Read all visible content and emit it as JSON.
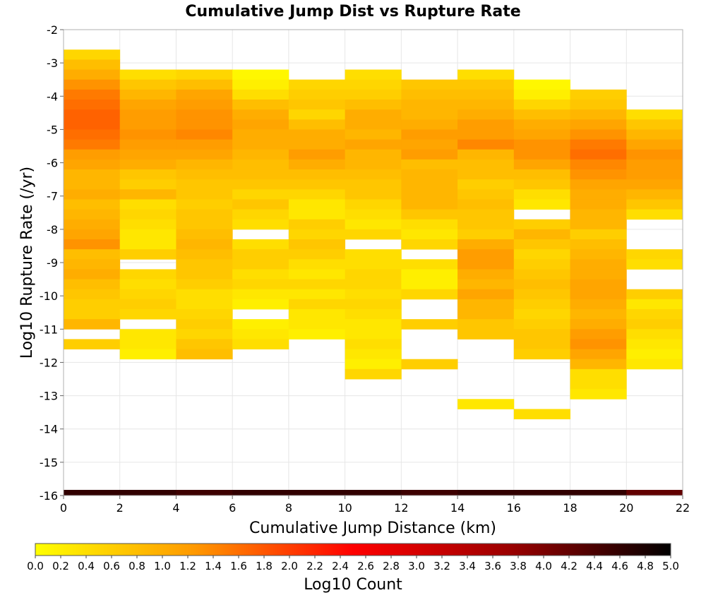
{
  "chart_data": {
    "type": "heatmap",
    "title": "Cumulative Jump Dist vs Rupture Rate",
    "xlabel": "Cumulative Jump Distance (km)",
    "ylabel": "Log10 Rupture Rate (/yr)",
    "xlim": [
      0,
      22
    ],
    "ylim": [
      -16,
      -2
    ],
    "x_ticks": [
      "0",
      "2",
      "4",
      "6",
      "8",
      "10",
      "12",
      "14",
      "16",
      "18",
      "20",
      "22"
    ],
    "y_ticks": [
      "-2",
      "-3",
      "-4",
      "-5",
      "-6",
      "-7",
      "-8",
      "-9",
      "-10",
      "-11",
      "-12",
      "-13",
      "-14",
      "-15",
      "-16"
    ],
    "x_bin_width": 2,
    "y_bin_height": 0.3,
    "grid": true,
    "colorbar": {
      "label": "Log10 Count",
      "min": 0.0,
      "max": 5.0,
      "ticks": [
        "0.0",
        "0.2",
        "0.4",
        "0.6",
        "0.8",
        "1.0",
        "1.2",
        "1.4",
        "1.6",
        "1.8",
        "2.0",
        "2.2",
        "2.4",
        "2.6",
        "2.8",
        "3.0",
        "3.2",
        "3.4",
        "3.6",
        "3.8",
        "4.0",
        "4.2",
        "4.4",
        "4.6",
        "4.8",
        "5.0"
      ],
      "stops": [
        "#ffff00",
        "#ff9900",
        "#ff0000",
        "#990000",
        "#000000"
      ]
    },
    "columns": [
      {
        "x_start": 0,
        "y_top": -2.6,
        "values": [
          0.5,
          0.8,
          1.0,
          1.3,
          1.5,
          1.6,
          1.7,
          1.7,
          1.6,
          1.5,
          1.2,
          1.1,
          0.9,
          0.9,
          1.0,
          0.8,
          0.9,
          1.0,
          1.1,
          1.3,
          0.8,
          0.9,
          1.0,
          0.8,
          0.7,
          0.6,
          0.6,
          0.9,
          null,
          0.6
        ]
      },
      {
        "x_start": 2,
        "y_top": -3.2,
        "values": [
          0.4,
          0.7,
          0.9,
          1.1,
          1.2,
          1.2,
          1.3,
          1.2,
          1.1,
          1.0,
          0.7,
          0.6,
          0.9,
          0.4,
          0.5,
          0.4,
          0.3,
          0.3,
          0.6,
          null,
          0.5,
          0.4,
          0.5,
          0.6,
          0.5,
          null,
          0.3,
          0.3,
          0.2
        ]
      },
      {
        "x_start": 4,
        "y_top": -3.2,
        "values": [
          0.5,
          0.8,
          1.1,
          1.2,
          1.3,
          1.3,
          1.4,
          1.2,
          1.1,
          0.9,
          0.8,
          0.7,
          0.7,
          0.6,
          0.7,
          0.7,
          0.8,
          0.9,
          0.8,
          0.7,
          0.7,
          0.6,
          0.4,
          0.4,
          0.5,
          0.6,
          0.5,
          0.7,
          0.8
        ]
      },
      {
        "x_start": 6,
        "y_top": -3.2,
        "values": [
          0.1,
          0.2,
          0.4,
          0.8,
          1.0,
          1.1,
          1.0,
          1.0,
          0.9,
          0.8,
          0.8,
          0.7,
          0.5,
          0.7,
          0.5,
          0.4,
          null,
          0.4,
          0.6,
          0.6,
          0.4,
          0.5,
          0.3,
          0.2,
          null,
          0.2,
          0.3,
          0.4
        ]
      },
      {
        "x_start": 8,
        "y_top": -3.5,
        "values": [
          0.5,
          0.6,
          0.7,
          0.5,
          0.8,
          1.0,
          1.0,
          1.2,
          1.0,
          0.8,
          0.7,
          0.5,
          0.3,
          0.3,
          0.6,
          0.5,
          0.7,
          0.6,
          0.4,
          0.3,
          0.5,
          0.3,
          0.5,
          0.3,
          0.3,
          0.2
        ]
      },
      {
        "x_start": 10,
        "y_top": -3.2,
        "values": [
          0.4,
          0.5,
          0.6,
          0.8,
          1.0,
          1.0,
          0.9,
          1.1,
          0.9,
          0.9,
          0.8,
          0.7,
          0.7,
          0.5,
          0.4,
          0.3,
          0.5,
          null,
          0.4,
          0.4,
          0.5,
          0.5,
          0.4,
          0.5,
          0.4,
          0.3,
          0.3,
          0.4,
          0.3,
          0.2,
          0.5
        ]
      },
      {
        "x_start": 12,
        "y_top": -3.5,
        "values": [
          0.7,
          0.8,
          0.9,
          0.9,
          1.0,
          1.2,
          1.1,
          1.2,
          0.8,
          0.9,
          0.9,
          0.9,
          0.9,
          0.7,
          0.4,
          0.3,
          0.5,
          null,
          0.4,
          0.2,
          0.2,
          0.5,
          null,
          null,
          0.6,
          null,
          null,
          null,
          0.6
        ]
      },
      {
        "x_start": 14,
        "y_top": -3.2,
        "values": [
          0.4,
          0.7,
          0.8,
          0.9,
          1.0,
          1.2,
          1.2,
          1.4,
          0.9,
          0.8,
          0.8,
          0.6,
          0.7,
          0.8,
          0.7,
          0.7,
          0.6,
          1.0,
          1.2,
          1.2,
          1.0,
          0.9,
          1.1,
          0.9,
          0.9,
          0.7,
          0.7,
          null,
          null,
          null,
          null,
          null,
          null,
          0.3
        ]
      },
      {
        "x_start": 16,
        "y_top": -3.5,
        "values": [
          0.1,
          0.2,
          0.5,
          0.8,
          1.0,
          1.1,
          1.3,
          1.3,
          1.1,
          0.8,
          0.7,
          0.4,
          0.3,
          null,
          0.6,
          0.9,
          0.7,
          0.5,
          0.6,
          0.7,
          0.8,
          0.7,
          0.6,
          0.5,
          0.6,
          0.7,
          0.7,
          0.6,
          null,
          null,
          null,
          null,
          null,
          0.4
        ]
      },
      {
        "x_start": 18,
        "y_top": -3.8,
        "values": [
          0.6,
          0.7,
          0.9,
          1.1,
          1.3,
          1.5,
          1.6,
          1.4,
          1.3,
          1.1,
          1.0,
          1.0,
          0.9,
          0.9,
          0.6,
          0.8,
          0.9,
          1.0,
          1.0,
          1.1,
          1.1,
          1.0,
          0.9,
          1.0,
          1.2,
          1.3,
          1.1,
          0.9,
          0.4,
          0.4,
          0.3
        ]
      },
      {
        "x_start": 20,
        "y_top": -4.4,
        "values": [
          0.4,
          0.7,
          0.9,
          1.1,
          1.3,
          1.2,
          1.2,
          1.1,
          0.9,
          0.7,
          0.4,
          null,
          null,
          null,
          0.5,
          0.4,
          null,
          null,
          0.6,
          0.3,
          0.5,
          0.6,
          0.4,
          0.3,
          0.2,
          0.3
        ]
      }
    ],
    "base_row": {
      "y_start": -16.0,
      "y_end": -15.83,
      "values": [
        4.6,
        4.6,
        4.5,
        4.6,
        4.6,
        4.6,
        4.5,
        4.6,
        4.6,
        4.6,
        4.2
      ]
    }
  }
}
